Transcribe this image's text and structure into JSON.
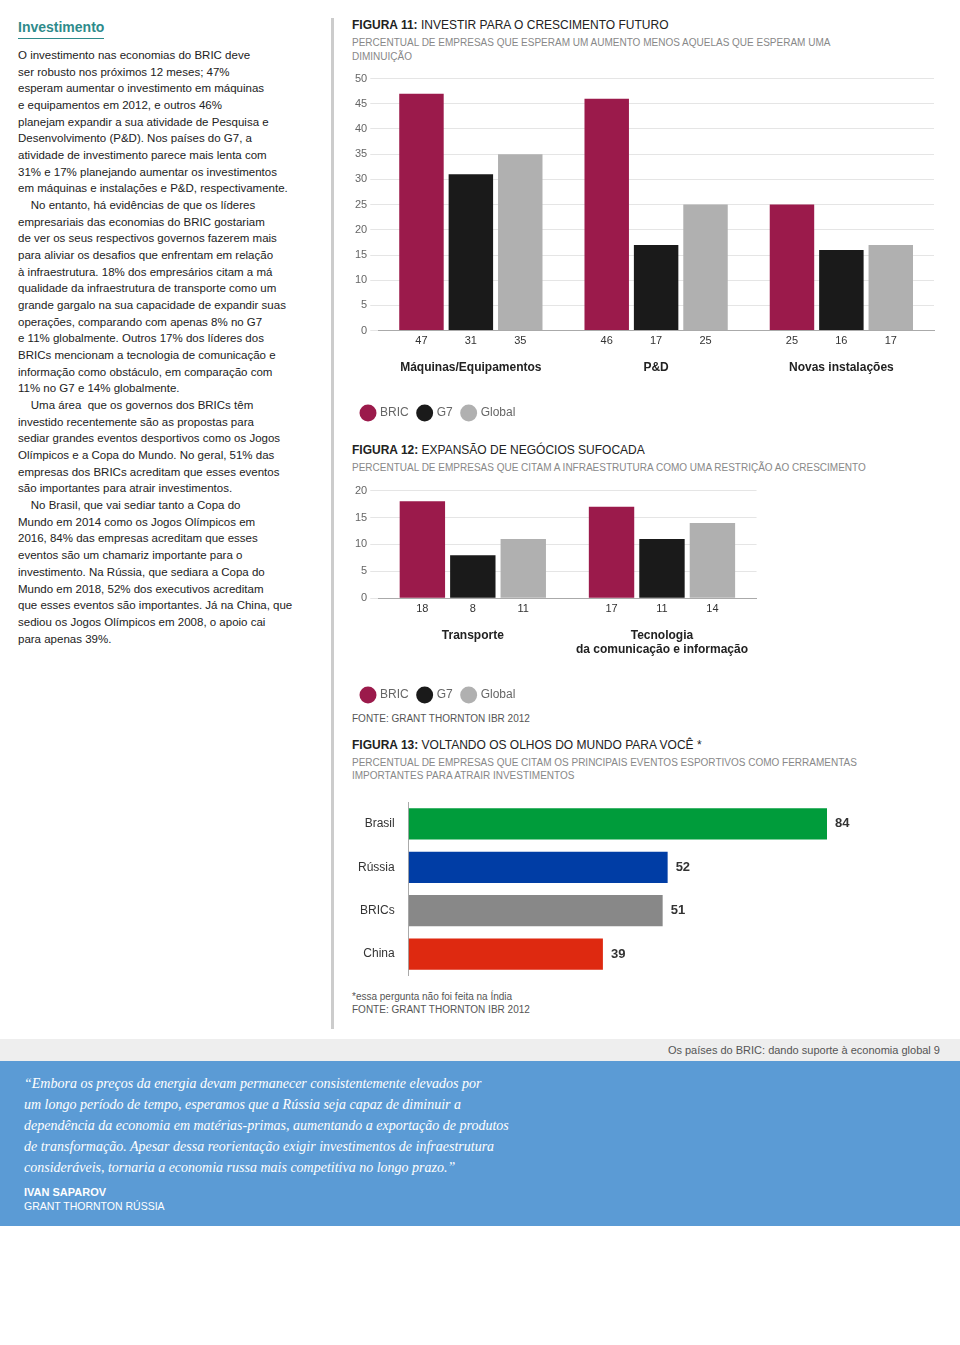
{
  "left_title": "Investimento",
  "left_body": "O investimento nas economias do BRIC deve\nser robusto nos próximos 12 meses; 47%\nesperam aumentar o investimento em máquinas\ne equipamentos em 2012, e outros 46%\nplanejam expandir a sua atividade de Pesquisa e\nDesenvolvimento (P&D). Nos países do G7, a\natividade de investimento parece mais lenta com\n31% e 17% planejando aumentar os investimentos\nem máquinas e instalações e P&D, respectivamente.\n    No entanto, há evidências de que os líderes\nempresariais das economias do BRIC gostariam\nde ver os seus respectivos governos fazerem mais\npara aliviar os desafios que enfrentam em relação\nà infraestrutura. 18% dos empresários citam a má\nqualidade da infraestrutura de transporte como um\ngrande gargalo na sua capacidade de expandir suas\noperações, comparando com apenas 8% no G7\ne 11% globalmente. Outros 17% dos líderes dos\nBRICs mencionam a tecnologia de comunicação e\ninformação como obstáculo, em comparação com\n11% no G7 e 14% globalmente.\n    Uma área  que os governos dos BRICs têm\ninvestido recentemente são as propostas para\nsediar grandes eventos desportivos como os Jogos\nOlímpicos e a Copa do Mundo. No geral, 51% das\nempresas dos BRICs acreditam que esses eventos\nsão importantes para atrair investimentos.\n    No Brasil, que vai sediar tanto a Copa do\nMundo em 2014 como os Jogos Olímpicos em\n2016, 84% das empresas acreditam que esses\neventos são um chamariz importante para o\ninvestimento. Na Rússia, que sediara a Copa do\nMundo em 2018, 52% dos executivos acreditam\nque esses eventos são importantes. Já na China, que\nsediou os Jogos Olímpicos em 2008, o apoio cai\npara apenas 39%.",
  "page_footer": "Os países do BRIC: dando suporte à economia global 9",
  "quote_text": "“Embora os preços da energia devam permanecer  consistentemente elevados por\num longo período de tempo, esperamos que a Rússia seja capaz de diminuir a\ndependência da economia em matérias-primas, aumentando a exportação de produtos\nde transformação. Apesar dessa reorientação exigir investimentos de infraestrutura\nconsideráveis, tornaria a economia russa mais competitiva no longo prazo.”",
  "quote_author": "IVAN SAPAROV",
  "quote_company": "GRANT THORNTON RÚSSIA",
  "chart_data": [
    {
      "type": "bar",
      "title": "FIGURA 11: INVESTIR PARA O CRESCIMENTO FUTURO",
      "subtitle": "PERCENTUAL DE EMPRESAS QUE ESPERAM UM AUMENTO MENOS AQUELAS QUE ESPERAM UMA\nDIMINUIÇÃO",
      "categories": [
        "Máquinas/Equipamentos",
        "P&D",
        "Novas instalações"
      ],
      "series": [
        {
          "name": "BRIC",
          "color": "#9b1a4b",
          "values": [
            47,
            46,
            25
          ]
        },
        {
          "name": "G7",
          "color": "#1a1a1a",
          "values": [
            31,
            17,
            16
          ]
        },
        {
          "name": "Global",
          "color": "#b0b0b0",
          "values": [
            35,
            25,
            17
          ]
        }
      ],
      "ylim": [
        0,
        50
      ],
      "yticks": [
        0,
        5,
        10,
        15,
        20,
        25,
        30,
        35,
        40,
        45,
        50
      ],
      "grid": true,
      "legend": "bottom",
      "data_labels": true
    },
    {
      "type": "bar",
      "title": "FIGURA 12: EXPANSÃO DE NEGÓCIOS SUFOCADA",
      "subtitle": "PERCENTUAL DE EMPRESAS QUE CITAM A INFRAESTRUTURA COMO UMA RESTRIÇÃO AO CRESCIMENTO",
      "categories": [
        "Transporte",
        "Tecnologia\nda comunicação e informação"
      ],
      "series": [
        {
          "name": "BRIC",
          "color": "#9b1a4b",
          "values": [
            18,
            17
          ]
        },
        {
          "name": "G7",
          "color": "#1a1a1a",
          "values": [
            8,
            11
          ]
        },
        {
          "name": "Global",
          "color": "#b0b0b0",
          "values": [
            11,
            14
          ]
        }
      ],
      "ylim": [
        0,
        20
      ],
      "yticks": [
        0,
        5,
        10,
        15,
        20
      ],
      "grid": true,
      "legend": "bottom",
      "data_labels": true,
      "source": "FONTE: GRANT THORNTON IBR 2012"
    },
    {
      "type": "bar",
      "orientation": "horizontal",
      "title": "FIGURA 13: VOLTANDO OS OLHOS DO MUNDO PARA VOCÊ *",
      "subtitle": "PERCENTUAL DE EMPRESAS QUE CITAM OS PRINCIPAIS EVENTOS ESPORTIVOS COMO FERRAMENTAS\nIMPORTANTES PARA ATRAIR INVESTIMENTOS",
      "categories": [
        "Brasil",
        "Rússia",
        "BRICs",
        "China"
      ],
      "values": [
        84,
        52,
        51,
        39
      ],
      "colors": [
        "#009c3b",
        "#003DA5",
        "#888888",
        "#DE2910"
      ],
      "xlim": [
        0,
        84
      ],
      "grid": false,
      "tick_labels": "y",
      "data_labels": true,
      "note": "*essa pergunta não foi feita na Índia",
      "source": "FONTE: GRANT THORNTON IBR 2012"
    }
  ]
}
